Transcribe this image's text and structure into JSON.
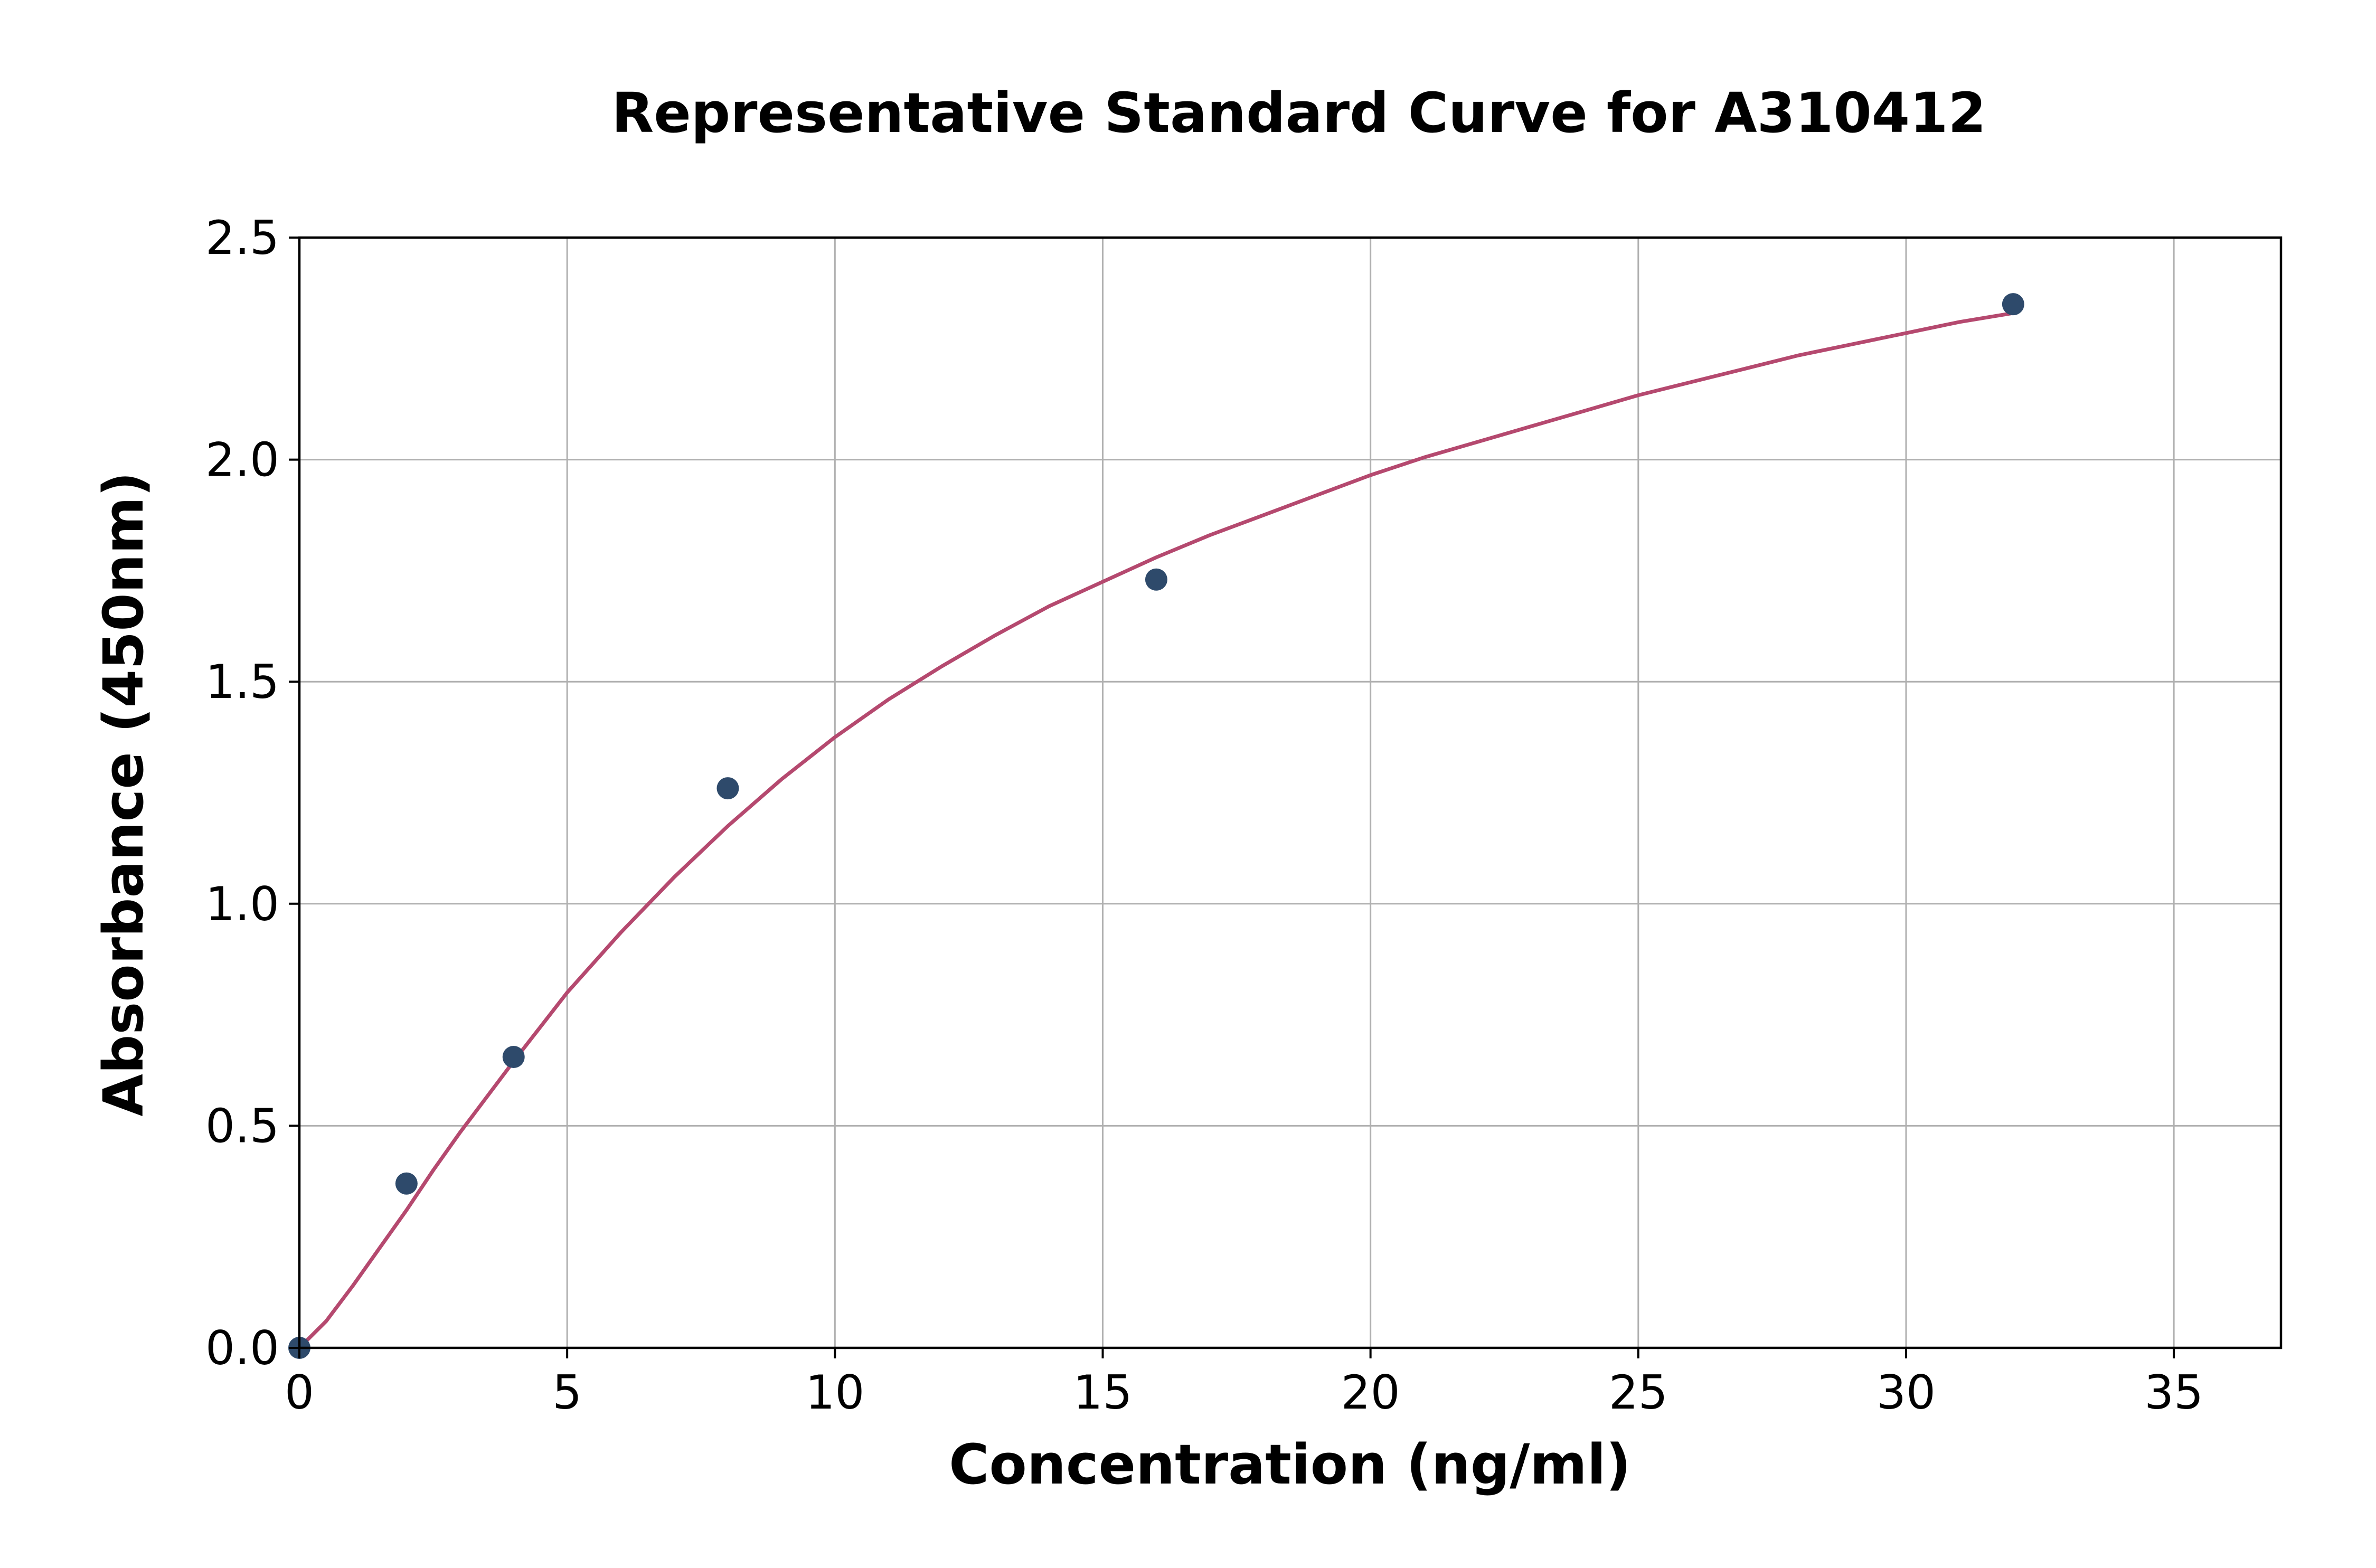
{
  "chart_data": {
    "type": "scatter",
    "title": "Representative Standard Curve for A310412",
    "xlabel": "Concentration (ng/ml)",
    "ylabel": "Absorbance (450nm)",
    "xlim": [
      0,
      37
    ],
    "ylim": [
      0,
      2.5
    ],
    "x_ticks": [
      0,
      5,
      10,
      15,
      20,
      25,
      30,
      35
    ],
    "y_ticks": [
      0.0,
      0.5,
      1.0,
      1.5,
      2.0,
      2.5
    ],
    "x_tick_labels": [
      "0",
      "5",
      "10",
      "15",
      "20",
      "25",
      "30",
      "35"
    ],
    "y_tick_labels": [
      "0.0",
      "0.5",
      "1.0",
      "1.5",
      "2.0",
      "2.5"
    ],
    "grid": true,
    "legend": "none",
    "series": [
      {
        "kind": "points",
        "color": "#2e4a6b",
        "x": [
          0,
          2,
          4,
          8,
          16,
          32
        ],
        "y": [
          0.0,
          0.37,
          0.655,
          1.26,
          1.73,
          2.35
        ]
      },
      {
        "kind": "fitted-curve",
        "color": "#b5496f",
        "x": [
          0,
          0.5,
          1,
          1.5,
          2,
          2.5,
          3,
          3.5,
          4,
          5,
          6,
          7,
          8,
          9,
          10,
          11,
          12,
          13,
          14,
          15,
          16,
          17,
          18,
          19,
          20,
          21,
          22,
          23,
          24,
          25,
          26,
          27,
          28,
          29,
          30,
          31,
          32
        ],
        "y": [
          0.0,
          0.06,
          0.14,
          0.225,
          0.31,
          0.4,
          0.485,
          0.565,
          0.645,
          0.8,
          0.935,
          1.06,
          1.175,
          1.28,
          1.375,
          1.46,
          1.535,
          1.605,
          1.67,
          1.725,
          1.78,
          1.83,
          1.875,
          1.92,
          1.965,
          2.005,
          2.04,
          2.075,
          2.11,
          2.145,
          2.175,
          2.205,
          2.235,
          2.26,
          2.285,
          2.31,
          2.33
        ]
      }
    ]
  }
}
